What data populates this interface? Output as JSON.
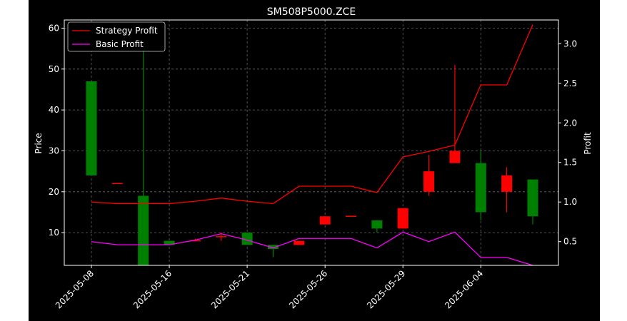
{
  "chart_data": {
    "type": "candlestick",
    "title": "SM508P5000.ZCE",
    "ylabel_left": "Price",
    "ylabel_right": "Profit",
    "xlabel": "",
    "ylim_left": [
      2,
      62
    ],
    "ylim_right": [
      0.2,
      3.3
    ],
    "yticks_left": [
      10,
      20,
      30,
      40,
      50,
      60
    ],
    "yticks_right": [
      0.5,
      1.0,
      1.5,
      2.0,
      2.5,
      3.0
    ],
    "ytick_labels_right": [
      "0.5",
      "1.0",
      "1.5",
      "2.0",
      "2.5",
      "3.0"
    ],
    "xtick_labels": [
      "2025-05-08",
      "2025-05-16",
      "2025-05-21",
      "2025-05-26",
      "2025-05-29",
      "2025-06-04"
    ],
    "xtick_index": [
      0,
      3,
      6,
      9,
      12,
      15
    ],
    "grid": true,
    "legend_position": "upper-left",
    "colors": {
      "background": "#000000",
      "up": "#ff0000",
      "down": "#008000",
      "strategy": "#ff0000",
      "basic": "#ff00ff",
      "grid": "#666666",
      "text": "#ffffff"
    },
    "candles": [
      {
        "open": 47,
        "high": 47,
        "low": 24,
        "close": 24
      },
      {
        "open": 22,
        "high": 22,
        "low": 22,
        "close": 22
      },
      {
        "open": 19,
        "high": 56,
        "low": 2,
        "close": 2
      },
      {
        "open": 8,
        "high": 8,
        "low": 7,
        "close": 7
      },
      {
        "open": 8,
        "high": 8.5,
        "low": 8,
        "close": 8
      },
      {
        "open": 9,
        "high": 10,
        "low": 8,
        "close": 9
      },
      {
        "open": 10,
        "high": 10,
        "low": 7,
        "close": 7
      },
      {
        "open": 7,
        "high": 7,
        "low": 4,
        "close": 6
      },
      {
        "open": 7,
        "high": 8,
        "low": 7,
        "close": 8
      },
      {
        "open": 12,
        "high": 14,
        "low": 12,
        "close": 14
      },
      {
        "open": 14,
        "high": 14,
        "low": 14,
        "close": 14
      },
      {
        "open": 13,
        "high": 13,
        "low": 10,
        "close": 11
      },
      {
        "open": 11,
        "high": 16,
        "low": 11,
        "close": 16
      },
      {
        "open": 20,
        "high": 29,
        "low": 19,
        "close": 25
      },
      {
        "open": 27,
        "high": 51,
        "low": 27,
        "close": 30
      },
      {
        "open": 27,
        "high": 30,
        "low": 13,
        "close": 15
      },
      {
        "open": 20,
        "high": 26,
        "low": 15,
        "close": 24
      },
      {
        "open": 23,
        "high": 23,
        "low": 12,
        "close": 14
      }
    ],
    "series": [
      {
        "name": "Strategy Profit",
        "axis": "right",
        "values": [
          1.0,
          0.98,
          0.98,
          0.98,
          1.01,
          1.05,
          1.01,
          0.98,
          1.2,
          1.2,
          1.2,
          1.12,
          1.57,
          1.64,
          1.72,
          2.48,
          2.48,
          3.24
        ]
      },
      {
        "name": "Basic Profit",
        "axis": "right",
        "values": [
          0.5,
          0.46,
          0.46,
          0.46,
          0.52,
          0.6,
          0.52,
          0.42,
          0.54,
          0.54,
          0.54,
          0.42,
          0.62,
          0.5,
          0.62,
          0.3,
          0.3,
          0.2
        ]
      }
    ]
  }
}
